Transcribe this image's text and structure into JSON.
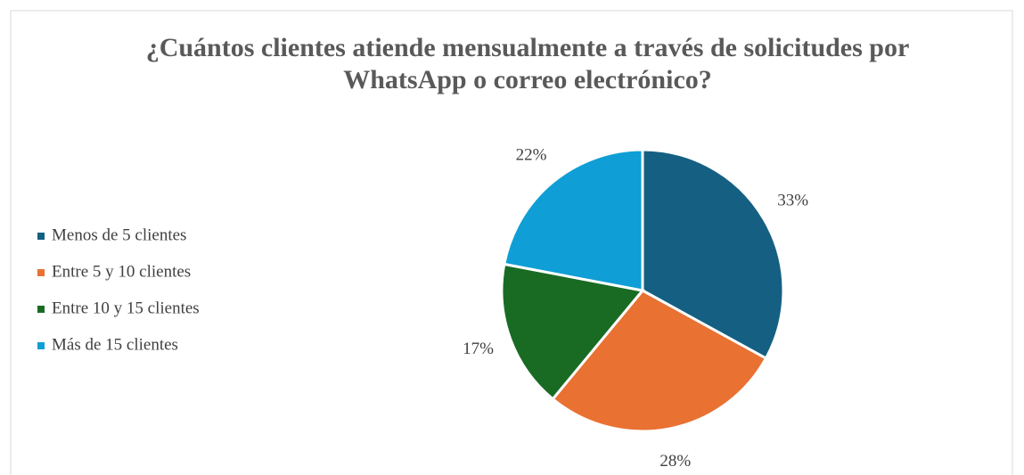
{
  "chart_data": {
    "type": "pie",
    "title": "¿Cuántos clientes atiende mensualmente a través de solicitudes por WhatsApp o correo electrónico?",
    "categories": [
      "Menos de 5 clientes",
      "Entre 5 y 10 clientes",
      "Entre 10 y 15 clientes",
      "Más de 15 clientes"
    ],
    "values": [
      33,
      28,
      17,
      22
    ],
    "value_labels": [
      "33%",
      "28%",
      "17%",
      "22%"
    ],
    "colors": [
      "#156082",
      "#e97132",
      "#196b24",
      "#0f9ed5"
    ],
    "legend": "left"
  }
}
